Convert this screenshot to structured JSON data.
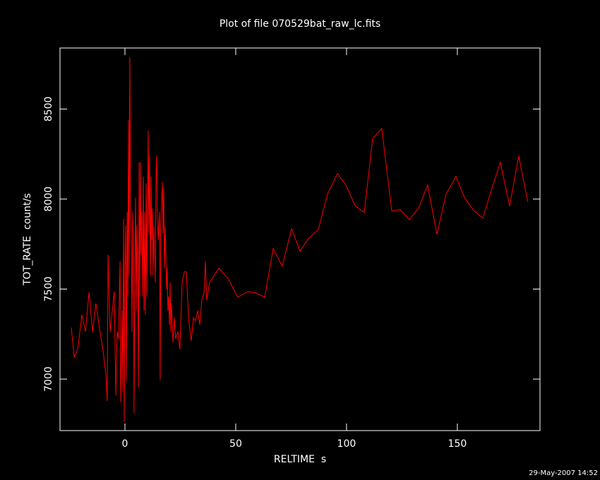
{
  "chart_data": {
    "type": "line",
    "title": "Plot of file 070529bat_raw_lc.fits",
    "x_label": "RELTIME  s",
    "y_label": "TOT_RATE  count/s",
    "timestamp": "29-May-2007 14:52",
    "color": "#ff0000",
    "xlim": [
      -29.3,
      187.3
    ],
    "ylim": [
      6714,
      8839
    ],
    "xticks": [
      0,
      50,
      100,
      150
    ],
    "yticks": [
      7000,
      7500,
      8000,
      8500
    ],
    "x": [
      -24.2,
      -22.9,
      -21.3,
      -19.4,
      -17.8,
      -16.2,
      -14.6,
      -13.1,
      -11.5,
      -9.9,
      -8.6,
      -8.0,
      -7.6,
      -6.7,
      -5.7,
      -4.8,
      -4.1,
      -3.5,
      -2.9,
      -2.2,
      -1.9,
      -1.6,
      -1.3,
      -1.0,
      -0.6,
      -0.3,
      0,
      0.3,
      0.6,
      1.0,
      1.3,
      1.6,
      1.9,
      2.2,
      2.5,
      2.9,
      3.2,
      3.5,
      3.8,
      4.1,
      4.5,
      4.8,
      5.1,
      5.4,
      5.7,
      6.1,
      6.4,
      6.7,
      7.0,
      7.3,
      7.6,
      8.0,
      8.3,
      8.6,
      8.9,
      9.2,
      9.6,
      9.9,
      10.2,
      10.5,
      10.8,
      11.1,
      11.5,
      11.8,
      12.1,
      12.4,
      12.7,
      13.1,
      13.7,
      14.0,
      14.3,
      14.6,
      15.0,
      15.3,
      15.6,
      15.9,
      16.2,
      16.9,
      17.2,
      17.5,
      17.8,
      18.2,
      18.8,
      19.1,
      19.4,
      19.7,
      20.1,
      20.4,
      20.7,
      21.0,
      21.7,
      22.3,
      22.9,
      23.9,
      24.8,
      25.8,
      26.8,
      27.7,
      28.7,
      29.9,
      30.9,
      31.8,
      32.8,
      33.8,
      34.7,
      35.7,
      36.3,
      36.9,
      38.2,
      42.4,
      46.8,
      50.9,
      55.4,
      59.2,
      63.1,
      66.9,
      71.0,
      75.2,
      79.0,
      82.8,
      87.3,
      91.4,
      95.9,
      99.7,
      103.8,
      108.0,
      111.8,
      115.9,
      120.4,
      124.2,
      128.3,
      132.5,
      136.6,
      140.8,
      144.9,
      149.4,
      153.2,
      157.3,
      161.5,
      165.3,
      169.4,
      173.6,
      177.7,
      181.8
    ],
    "values": [
      7286,
      7122,
      7165,
      7357,
      7263,
      7482,
      7263,
      7420,
      7282,
      7161,
      7027,
      6878,
      7690,
      7263,
      7380,
      7486,
      6910,
      7263,
      7224,
      7655,
      6871,
      7106,
      7380,
      6929,
      7890,
      6761,
      7616,
      7851,
      6988,
      7929,
      7459,
      8439,
      7576,
      8788,
      8086,
      7733,
      7263,
      7929,
      7812,
      6812,
      7655,
      8008,
      7380,
      7851,
      7694,
      6957,
      8204,
      7459,
      8204,
      7694,
      7929,
      7459,
      8125,
      7380,
      7929,
      7361,
      8086,
      7459,
      7929,
      8380,
      7812,
      8243,
      7576,
      8125,
      7773,
      7949,
      7576,
      7851,
      7537,
      8086,
      8243,
      7929,
      7773,
      7851,
      7929,
      6996,
      7851,
      8094,
      7812,
      8055,
      7616,
      7851,
      7498,
      7616,
      7380,
      7459,
      7302,
      7537,
      7263,
      7420,
      7204,
      7341,
      7224,
      7263,
      7165,
      7537,
      7596,
      7596,
      7341,
      7212,
      7341,
      7322,
      7380,
      7302,
      7439,
      7478,
      7655,
      7439,
      7537,
      7616,
      7553,
      7455,
      7486,
      7478,
      7455,
      7725,
      7627,
      7835,
      7710,
      7780,
      7831,
      8027,
      8141,
      8078,
      7965,
      7925,
      8337,
      8392,
      7933,
      7941,
      7886,
      7949,
      8078,
      7804,
      8027,
      8125,
      8008,
      7937,
      7894,
      8047,
      8204,
      7961,
      8239,
      7984
    ]
  }
}
